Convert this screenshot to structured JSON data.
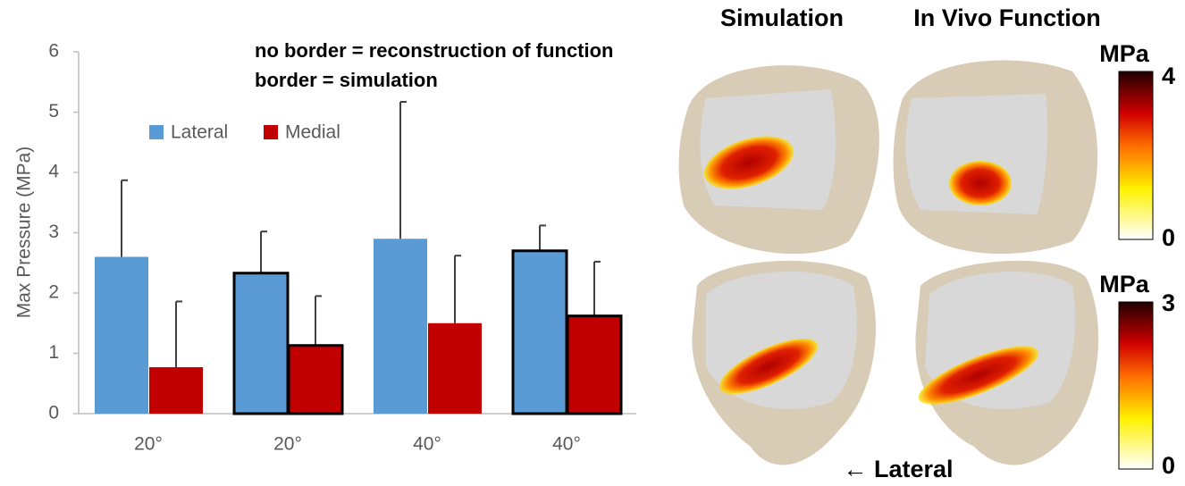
{
  "chart_data": {
    "type": "bar",
    "y_label": "Max Pressure (MPa)",
    "annotations": [
      "no border = reconstruction of function",
      "border = simulation"
    ],
    "categories": [
      "20°",
      "20°",
      "40°",
      "40°"
    ],
    "bordered": [
      false,
      true,
      false,
      true
    ],
    "series": [
      {
        "name": "Lateral",
        "color": "#5b9bd5",
        "values": [
          2.6,
          2.33,
          2.9,
          2.7
        ],
        "errors": [
          1.27,
          0.69,
          2.27,
          0.42
        ]
      },
      {
        "name": "Medial",
        "color": "#c00000",
        "values": [
          0.77,
          1.13,
          1.5,
          1.62
        ],
        "errors": [
          1.09,
          0.82,
          1.12,
          0.9
        ]
      }
    ],
    "ylim": [
      0,
      6
    ],
    "yticks": [
      0,
      1,
      2,
      3,
      4,
      5,
      6
    ]
  },
  "figure": {
    "columns": [
      "Simulation",
      "In Vivo Function"
    ],
    "direction": "← Lateral",
    "colorbars": [
      {
        "label": "MPa",
        "max": 4,
        "min": 0
      },
      {
        "label": "MPa",
        "max": 3,
        "min": 0
      }
    ]
  }
}
